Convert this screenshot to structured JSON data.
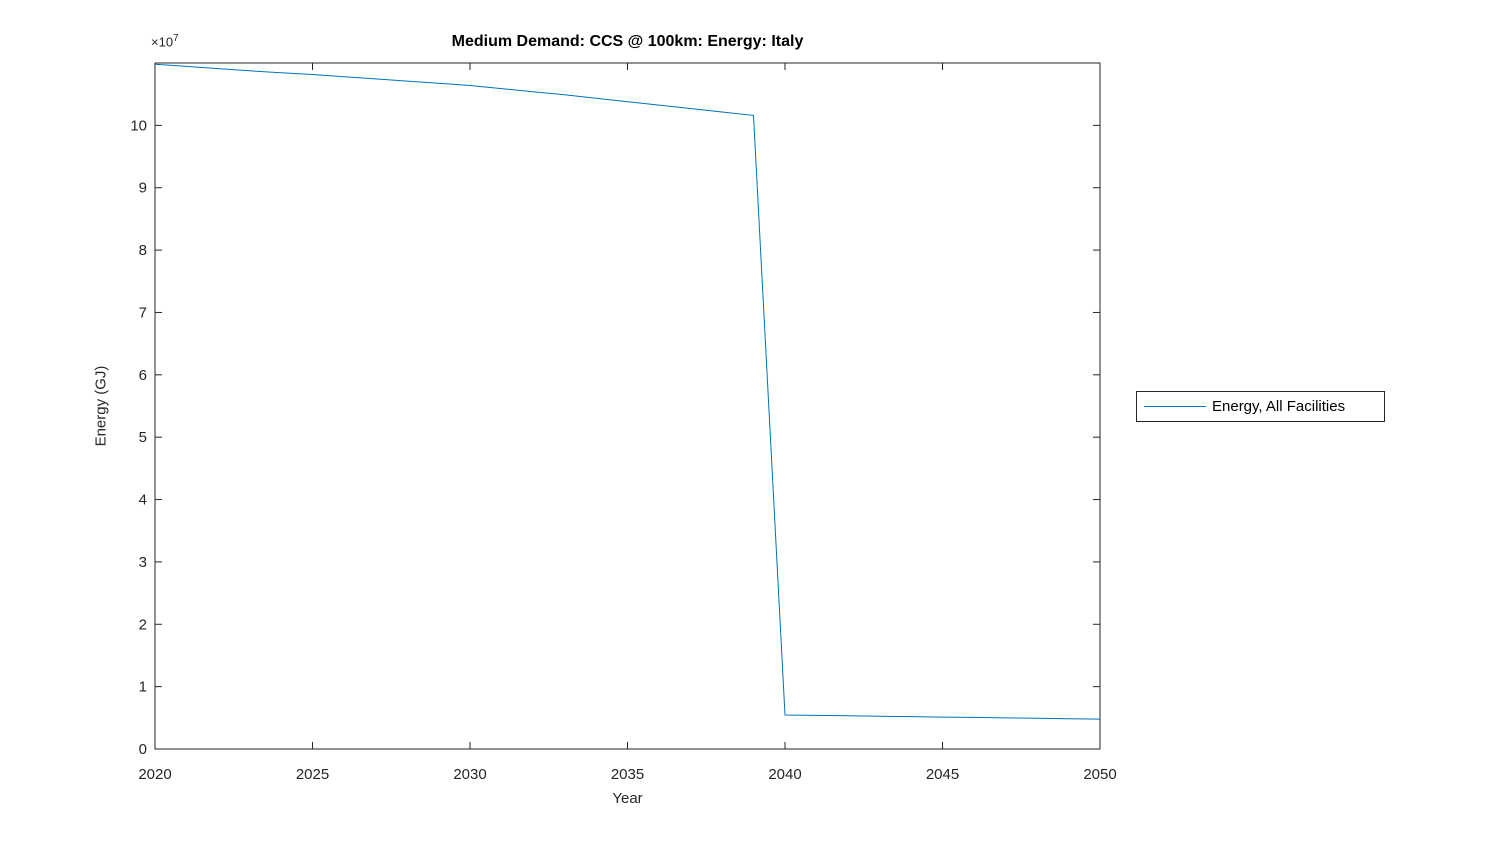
{
  "colors": {
    "line": "#0072BD",
    "axis": "#262626",
    "tick_text": "#262626",
    "title_text": "#000000",
    "background": "#FFFFFF"
  },
  "chart_data": {
    "type": "line",
    "title": "Medium Demand: CCS @ 100km: Energy: Italy",
    "xlabel": "Year",
    "ylabel": "Energy (GJ)",
    "xlim": [
      2020,
      2050
    ],
    "ylim": [
      0,
      110000000
    ],
    "grid": false,
    "x_ticks": [
      2020,
      2025,
      2030,
      2035,
      2040,
      2045,
      2050
    ],
    "y_ticks": [
      0,
      1,
      2,
      3,
      4,
      5,
      6,
      7,
      8,
      9,
      10
    ],
    "y_tick_unit": 10000000,
    "y_exponent": {
      "base": "×10",
      "power": "7"
    },
    "legend": {
      "position": "right-outside",
      "entries": [
        "Energy, All Facilities"
      ]
    },
    "series": [
      {
        "name": "Energy, All Facilities",
        "color": "#0072BD",
        "x": [
          2020,
          2021,
          2022,
          2023,
          2024,
          2025,
          2026,
          2027,
          2028,
          2029,
          2030,
          2031,
          2032,
          2033,
          2034,
          2035,
          2036,
          2037,
          2038,
          2039,
          2040,
          2041,
          2042,
          2043,
          2044,
          2045,
          2046,
          2047,
          2048,
          2049,
          2050
        ],
        "y": [
          109800000,
          109450000,
          109100000,
          108750000,
          108450000,
          108150000,
          107800000,
          107450000,
          107100000,
          106750000,
          106400000,
          105900000,
          105400000,
          104900000,
          104350000,
          103800000,
          103250000,
          102700000,
          102150000,
          101600000,
          5450000,
          5380000,
          5320000,
          5250000,
          5190000,
          5120000,
          5060000,
          4990000,
          4930000,
          4860000,
          4800000
        ]
      }
    ]
  }
}
